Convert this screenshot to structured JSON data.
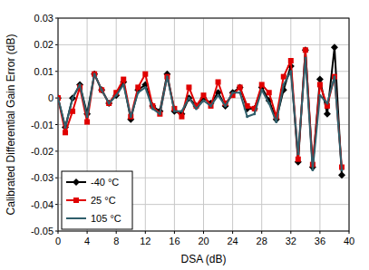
{
  "chart_data": {
    "type": "line",
    "x_label": "DSA (dB)",
    "y_label": "Calibrated Differential Gain Error (dB)",
    "x": [
      0,
      1,
      2,
      3,
      4,
      5,
      6,
      7,
      8,
      9,
      10,
      11,
      12,
      13,
      14,
      15,
      16,
      17,
      18,
      19,
      20,
      21,
      22,
      23,
      24,
      25,
      26,
      27,
      28,
      29,
      30,
      31,
      32,
      33,
      34,
      35,
      36,
      37,
      38,
      39
    ],
    "series": [
      {
        "name": "-40 °C",
        "color": "#000000",
        "marker": "diamond",
        "values": [
          0,
          -0.011,
          0,
          0.005,
          -0.006,
          0.009,
          0.003,
          -0.002,
          0.001,
          0.006,
          -0.008,
          0.003,
          0.005,
          -0.003,
          -0.005,
          0.009,
          -0.005,
          -0.006,
          0,
          -0.003,
          0,
          -0.002,
          0.002,
          -0.003,
          0.002,
          0.004,
          -0.004,
          -0.004,
          0.004,
          -0.001,
          -0.008,
          0.003,
          0.012,
          -0.024,
          0.018,
          -0.026,
          0.007,
          -0.006,
          0.019,
          -0.029
        ]
      },
      {
        "name": "25 °C",
        "color": "#e00000",
        "marker": "square",
        "values": [
          0,
          -0.013,
          -0.005,
          0.004,
          -0.009,
          0.009,
          0.003,
          -0.002,
          0.002,
          0.007,
          -0.007,
          0.004,
          0.009,
          -0.003,
          -0.006,
          0.008,
          -0.004,
          -0.007,
          0.004,
          -0.003,
          0.001,
          -0.003,
          0.006,
          -0.002,
          0.001,
          0.004,
          -0.003,
          -0.004,
          0.005,
          0.002,
          -0.007,
          0.008,
          0.014,
          -0.023,
          0.018,
          -0.025,
          0.005,
          -0.003,
          0.008,
          -0.026
        ]
      },
      {
        "name": "105 °C",
        "color": "#2f5f6b",
        "marker": "none",
        "values": [
          0,
          -0.011,
          0,
          0.005,
          -0.007,
          0.009,
          0.003,
          -0.002,
          0.001,
          0.005,
          -0.007,
          0.002,
          0.004,
          -0.004,
          -0.006,
          0.008,
          -0.005,
          -0.005,
          0,
          -0.004,
          -0.001,
          -0.003,
          0.001,
          -0.003,
          0.002,
          0.002,
          -0.007,
          -0.006,
          0.003,
          -0.002,
          -0.009,
          0.005,
          0.01,
          -0.021,
          0.015,
          -0.027,
          0.001,
          -0.002,
          0.008,
          -0.027
        ]
      }
    ],
    "xlim": [
      0,
      40
    ],
    "xticks": [
      0,
      4,
      8,
      12,
      16,
      20,
      24,
      28,
      32,
      36,
      40
    ],
    "ylim": [
      -0.05,
      0.03
    ],
    "yticks": [
      -0.05,
      -0.04,
      -0.03,
      -0.02,
      -0.01,
      0,
      0.01,
      0.02,
      0.03
    ],
    "grid": true,
    "legend": "lower left"
  }
}
